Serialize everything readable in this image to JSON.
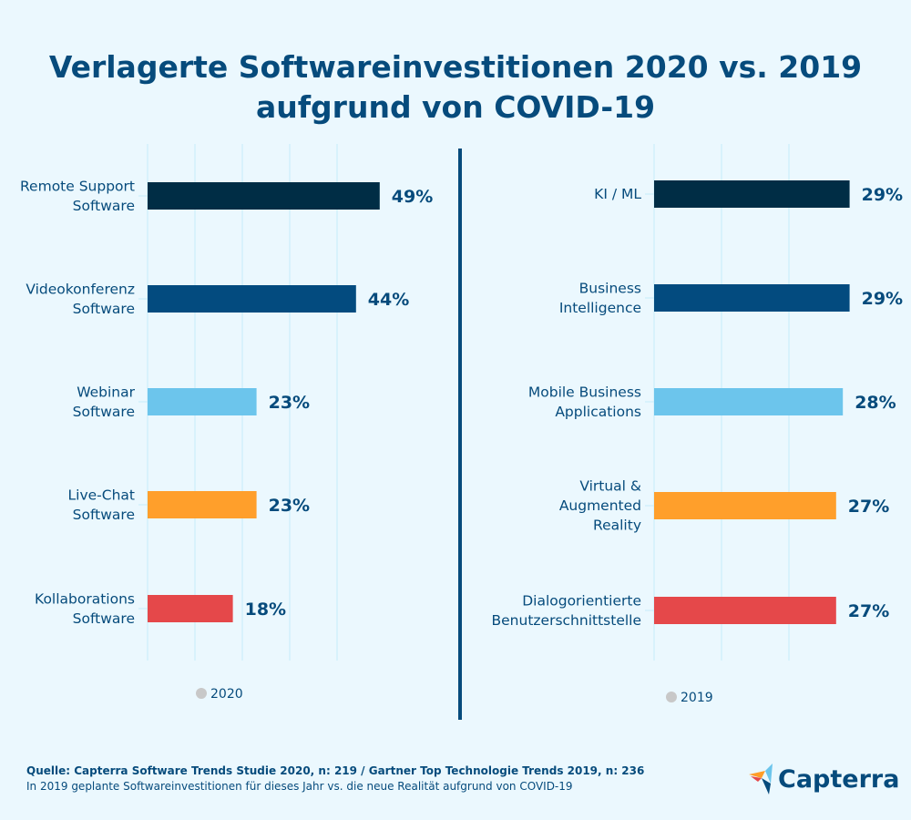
{
  "title_line1": "Verlagerte Softwareinvestitionen 2020 vs. 2019",
  "title_line2": "aufgrund von COVID-19",
  "chart_data": [
    {
      "type": "bar",
      "orientation": "horizontal",
      "legend": "2020",
      "categories": [
        [
          "Remote Support",
          "Software"
        ],
        [
          "Videokonferenz",
          "Software"
        ],
        [
          "Webinar",
          "Software"
        ],
        [
          "Live-Chat",
          "Software"
        ],
        [
          "Kollaborations",
          "Software"
        ]
      ],
      "values": [
        49,
        44,
        23,
        23,
        18
      ],
      "labels": [
        "49%",
        "44%",
        "23%",
        "23%",
        "18%"
      ],
      "colors": [
        "#002d45",
        "#034b7f",
        "#6cc5ec",
        "#ff9f2b",
        "#e5484a"
      ],
      "xlim": [
        0,
        50
      ],
      "grid": true
    },
    {
      "type": "bar",
      "orientation": "horizontal",
      "legend": "2019",
      "categories": [
        [
          "KI / ML"
        ],
        [
          "Business",
          "Intelligence"
        ],
        [
          "Mobile Business",
          "Applications"
        ],
        [
          "Virtual &",
          "Augmented",
          "Reality"
        ],
        [
          "Dialogorientierte",
          "Benutzerschnittstelle"
        ]
      ],
      "values": [
        29,
        29,
        28,
        27,
        27
      ],
      "labels": [
        "29%",
        "29%",
        "28%",
        "27%",
        "27%"
      ],
      "colors": [
        "#002d45",
        "#034b7f",
        "#6cc5ec",
        "#ff9f2b",
        "#e5484a"
      ],
      "xlim": [
        0,
        30
      ],
      "grid": true
    }
  ],
  "footer": {
    "source": "Quelle: Capterra Software Trends Studie 2020, n: 219 / Gartner Top Technologie Trends 2019, n: 236",
    "note": "In 2019 geplante Softwareinvestitionen für dieses Jahr vs. die neue Realität aufgrund von COVID-19"
  },
  "logo": "Capterra",
  "colors": {
    "title": "#064b7c",
    "divider": "#064b7c",
    "grid": "#c6ecfa",
    "legend_dot": "#c8c8c8"
  }
}
